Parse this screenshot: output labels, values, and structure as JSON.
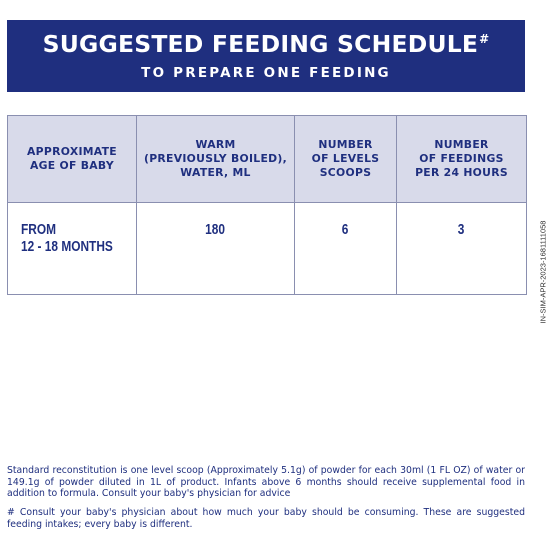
{
  "banner": {
    "title": "SUGGESTED FEEDING SCHEDULE",
    "title_mark": "#",
    "subtitle": "TO PREPARE ONE FEEDING"
  },
  "table": {
    "headers": [
      [
        "APPROXIMATE",
        "AGE OF BABY"
      ],
      [
        "WARM",
        "(PREVIOUSLY BOILED),",
        "WATER, ML"
      ],
      [
        "NUMBER",
        "OF LEVELS",
        "SCOOPS"
      ],
      [
        "NUMBER",
        "OF FEEDINGS",
        "PER 24 HOURS"
      ]
    ],
    "rows": [
      {
        "age_line1": "FROM",
        "age_line2": "12 - 18 MONTHS",
        "water_ml": "180",
        "scoops": "6",
        "feedings": "3"
      }
    ]
  },
  "side_code": "IN-SIM-APR-2023-1681111058",
  "footnotes": {
    "reconstitution": "Standard reconstitution is one level scoop (Approximately 5.1g) of powder for each 30ml (1 FL OZ) of water or 149.1g of powder diluted in 1L of product. Infants above 6 months should receive supplemental food in addition to formula. Consult your baby's physician for advice",
    "hash_note": "# Consult your baby's physician about how much your baby should be consuming. These are suggested feeding intakes; every baby is different."
  },
  "colors": {
    "navy": "#1f2f7f",
    "header_fill": "#d8daea",
    "border": "#8a8fb0"
  }
}
